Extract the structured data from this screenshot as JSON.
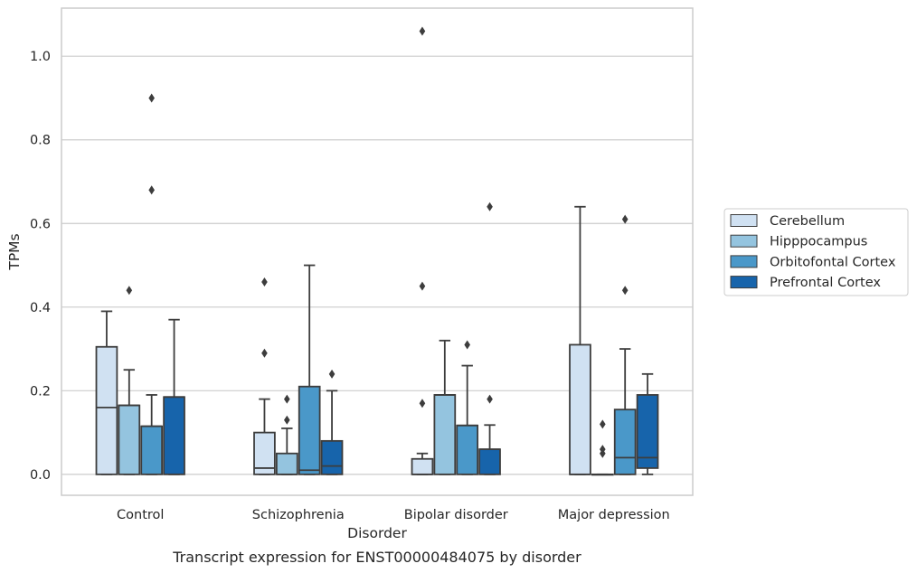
{
  "chart_data": {
    "type": "box",
    "caption": "Transcript expression for ENST00000484075 by disorder",
    "xlabel": "Disorder",
    "ylabel": "TPMs",
    "ylim": [
      -0.05,
      1.115
    ],
    "yticks": [
      0.0,
      0.2,
      0.4,
      0.6,
      0.8,
      1.0
    ],
    "ytick_labels": [
      "0.0",
      "0.2",
      "0.4",
      "0.6",
      "0.8",
      "1.0"
    ],
    "grid": true,
    "legend_position": "center-right",
    "categories": [
      "Control",
      "Schizophrenia",
      "Bipolar disorder",
      "Major depression"
    ],
    "series": [
      {
        "name": "Cerebellum",
        "color": "#d0e1f2",
        "boxes": [
          {
            "q1": 0.0,
            "median": 0.16,
            "q3": 0.305,
            "whisker_low": 0.0,
            "whisker_high": 0.39,
            "outliers": []
          },
          {
            "q1": 0.0,
            "median": 0.015,
            "q3": 0.1,
            "whisker_low": 0.0,
            "whisker_high": 0.18,
            "outliers": [
              0.29,
              0.46
            ]
          },
          {
            "q1": 0.0,
            "median": 0.0,
            "q3": 0.037,
            "whisker_low": 0.0,
            "whisker_high": 0.05,
            "outliers": [
              0.17,
              0.45,
              1.06
            ]
          },
          {
            "q1": 0.0,
            "median": 0.0,
            "q3": 0.31,
            "whisker_low": 0.0,
            "whisker_high": 0.64,
            "outliers": []
          }
        ]
      },
      {
        "name": "Hipppocampus",
        "color": "#94c4df",
        "boxes": [
          {
            "q1": 0.0,
            "median": 0.165,
            "q3": 0.165,
            "whisker_low": 0.0,
            "whisker_high": 0.25,
            "outliers": [
              0.44
            ]
          },
          {
            "q1": 0.0,
            "median": 0.0,
            "q3": 0.05,
            "whisker_low": 0.0,
            "whisker_high": 0.11,
            "outliers": [
              0.13,
              0.18
            ]
          },
          {
            "q1": 0.0,
            "median": 0.19,
            "q3": 0.19,
            "whisker_low": 0.0,
            "whisker_high": 0.32,
            "outliers": []
          },
          {
            "q1": 0.0,
            "median": 0.0,
            "q3": 0.0,
            "whisker_low": 0.0,
            "whisker_high": 0.0,
            "outliers": [
              0.05,
              0.06,
              0.12
            ]
          }
        ]
      },
      {
        "name": "Orbitofontal Cortex",
        "color": "#4a98c9",
        "boxes": [
          {
            "q1": 0.0,
            "median": 0.115,
            "q3": 0.115,
            "whisker_low": 0.0,
            "whisker_high": 0.19,
            "outliers": [
              0.68,
              0.9
            ]
          },
          {
            "q1": 0.0,
            "median": 0.01,
            "q3": 0.21,
            "whisker_low": 0.0,
            "whisker_high": 0.5,
            "outliers": []
          },
          {
            "q1": 0.0,
            "median": 0.117,
            "q3": 0.117,
            "whisker_low": 0.0,
            "whisker_high": 0.26,
            "outliers": [
              0.31
            ]
          },
          {
            "q1": 0.0,
            "median": 0.04,
            "q3": 0.155,
            "whisker_low": 0.0,
            "whisker_high": 0.3,
            "outliers": [
              0.44,
              0.61
            ]
          }
        ]
      },
      {
        "name": "Prefrontal Cortex",
        "color": "#1764ab",
        "boxes": [
          {
            "q1": 0.0,
            "median": 0.185,
            "q3": 0.185,
            "whisker_low": 0.0,
            "whisker_high": 0.37,
            "outliers": []
          },
          {
            "q1": 0.0,
            "median": 0.02,
            "q3": 0.08,
            "whisker_low": 0.0,
            "whisker_high": 0.2,
            "outliers": [
              0.24
            ]
          },
          {
            "q1": 0.0,
            "median": 0.06,
            "q3": 0.06,
            "whisker_low": 0.0,
            "whisker_high": 0.118,
            "outliers": [
              0.18,
              0.64
            ]
          },
          {
            "q1": 0.015,
            "median": 0.04,
            "q3": 0.19,
            "whisker_low": 0.0,
            "whisker_high": 0.24,
            "outliers": []
          }
        ]
      }
    ]
  }
}
